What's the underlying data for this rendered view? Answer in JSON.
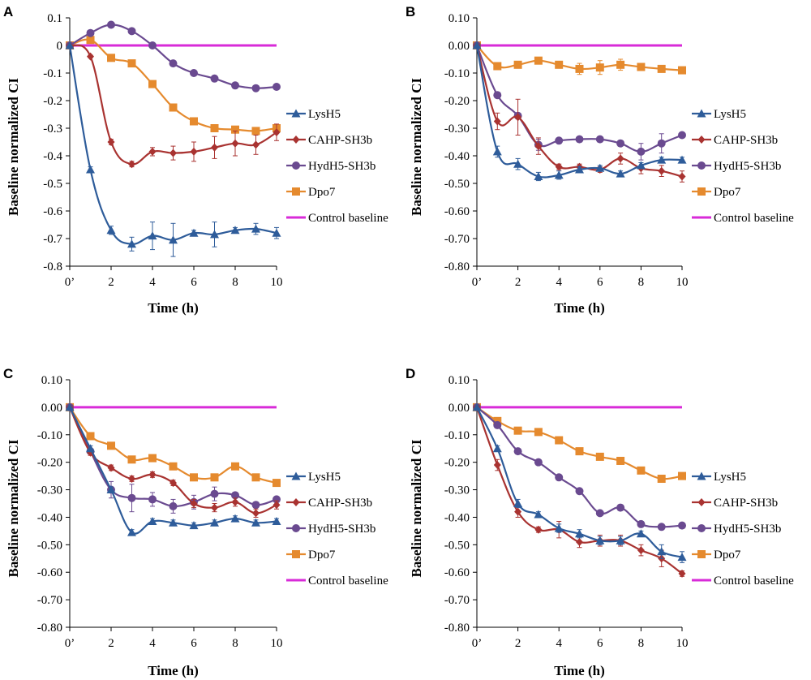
{
  "chart_data": [
    {
      "panel": "A",
      "type": "line",
      "xlabel": "Time (h)",
      "ylabel": "Baseline normalized CI",
      "x_ticks": [
        "0’",
        "2",
        "4",
        "6",
        "8",
        "10"
      ],
      "y_ticks": [
        "0.1",
        "0",
        "-0.1",
        "-0.2",
        "-0.3",
        "-0.4",
        "-0.5",
        "-0.6",
        "-0.7",
        "-0.8"
      ],
      "xlim": [
        0,
        10
      ],
      "ylim": [
        -0.8,
        0.1
      ],
      "x": [
        0,
        1,
        2,
        3,
        4,
        5,
        6,
        7,
        8,
        9,
        10
      ],
      "series": [
        {
          "name": "LysH5",
          "color": "#2E5C9A",
          "marker": "triangle",
          "values": [
            0,
            -0.45,
            -0.67,
            -0.72,
            -0.69,
            -0.705,
            -0.68,
            -0.685,
            -0.67,
            -0.665,
            -0.68
          ],
          "errors": [
            0,
            0.01,
            0.015,
            0.025,
            0.05,
            0.06,
            0.01,
            0.045,
            0.01,
            0.02,
            0.02
          ]
        },
        {
          "name": "CAHP-SH3b",
          "color": "#A93331",
          "marker": "diamond",
          "values": [
            0,
            -0.04,
            -0.35,
            -0.43,
            -0.385,
            -0.39,
            -0.385,
            -0.37,
            -0.355,
            -0.36,
            -0.315
          ],
          "errors": [
            0,
            0.005,
            0.01,
            0.01,
            0.015,
            0.025,
            0.035,
            0.04,
            0.045,
            0.035,
            0.03
          ]
        },
        {
          "name": "HydH5-SH3b",
          "color": "#6A4A90",
          "marker": "circle",
          "values": [
            0,
            0.045,
            0.075,
            0.052,
            0,
            -0.065,
            -0.1,
            -0.12,
            -0.145,
            -0.155,
            -0.15
          ],
          "errors": [
            0,
            0,
            0,
            0,
            0,
            0,
            0,
            0,
            0,
            0,
            0
          ]
        },
        {
          "name": "Dpo7",
          "color": "#E58A2E",
          "marker": "square",
          "values": [
            0,
            0.02,
            -0.045,
            -0.065,
            -0.14,
            -0.225,
            -0.275,
            -0.3,
            -0.305,
            -0.31,
            -0.3
          ],
          "errors": [
            0,
            0,
            0,
            0,
            0,
            0,
            0,
            0,
            0,
            0,
            0
          ]
        },
        {
          "name": "Control baseline",
          "color": "#D82BD8",
          "marker": "none",
          "values": [
            0,
            0,
            0,
            0,
            0,
            0,
            0,
            0,
            0,
            0,
            0
          ],
          "errors": [
            0,
            0,
            0,
            0,
            0,
            0,
            0,
            0,
            0,
            0,
            0
          ]
        }
      ]
    },
    {
      "panel": "B",
      "type": "line",
      "xlabel": "Time (h)",
      "ylabel": "Baseline normalized CI",
      "x_ticks": [
        "0’",
        "2",
        "4",
        "6",
        "8",
        "10"
      ],
      "y_ticks": [
        "0.10",
        "0.00",
        "-0.10",
        "-0.20",
        "-0.30",
        "-0.40",
        "-0.50",
        "-0.60",
        "-0.70",
        "-0.80"
      ],
      "xlim": [
        0,
        10
      ],
      "ylim": [
        -0.8,
        0.1
      ],
      "x": [
        0,
        1,
        2,
        3,
        4,
        5,
        6,
        7,
        8,
        9,
        10
      ],
      "series": [
        {
          "name": "LysH5",
          "color": "#2E5C9A",
          "marker": "triangle",
          "values": [
            0,
            -0.385,
            -0.43,
            -0.475,
            -0.47,
            -0.45,
            -0.445,
            -0.465,
            -0.435,
            -0.415,
            -0.415
          ],
          "errors": [
            0,
            0.02,
            0.02,
            0.015,
            0.015,
            0.01,
            0.01,
            0.01,
            0.01,
            0.01,
            0.01
          ]
        },
        {
          "name": "CAHP-SH3b",
          "color": "#A93331",
          "marker": "diamond",
          "values": [
            0,
            -0.275,
            -0.26,
            -0.365,
            -0.44,
            -0.44,
            -0.45,
            -0.41,
            -0.445,
            -0.455,
            -0.475
          ],
          "errors": [
            0,
            0.03,
            0.065,
            0.03,
            0.01,
            0.01,
            0.01,
            0.02,
            0.02,
            0.02,
            0.02
          ]
        },
        {
          "name": "HydH5-SH3b",
          "color": "#6A4A90",
          "marker": "circle",
          "values": [
            0,
            -0.18,
            -0.255,
            -0.36,
            -0.345,
            -0.34,
            -0.34,
            -0.355,
            -0.385,
            -0.355,
            -0.325
          ],
          "errors": [
            0,
            0,
            0,
            0.02,
            0,
            0,
            0,
            0,
            0.03,
            0.035,
            0
          ]
        },
        {
          "name": "Dpo7",
          "color": "#E58A2E",
          "marker": "square",
          "values": [
            0,
            -0.075,
            -0.07,
            -0.055,
            -0.07,
            -0.085,
            -0.08,
            -0.07,
            -0.078,
            -0.085,
            -0.09
          ],
          "errors": [
            0,
            0,
            0,
            0,
            0,
            0.02,
            0.025,
            0.02,
            0,
            0,
            0
          ]
        },
        {
          "name": "Control baseline",
          "color": "#D82BD8",
          "marker": "none",
          "values": [
            0,
            0,
            0,
            0,
            0,
            0,
            0,
            0,
            0,
            0,
            0
          ],
          "errors": [
            0,
            0,
            0,
            0,
            0,
            0,
            0,
            0,
            0,
            0,
            0
          ]
        }
      ]
    },
    {
      "panel": "C",
      "type": "line",
      "xlabel": "Time (h)",
      "ylabel": "Baseline normalized CI",
      "x_ticks": [
        "0’",
        "2",
        "4",
        "6",
        "8",
        "10"
      ],
      "y_ticks": [
        "0.10",
        "0.00",
        "-0.10",
        "-0.20",
        "-0.30",
        "-0.40",
        "-0.50",
        "-0.60",
        "-0.70",
        "-0.80"
      ],
      "xlim": [
        0,
        10
      ],
      "ylim": [
        -0.8,
        0.1
      ],
      "x": [
        0,
        1,
        2,
        3,
        4,
        5,
        6,
        7,
        8,
        9,
        10
      ],
      "series": [
        {
          "name": "LysH5",
          "color": "#2E5C9A",
          "marker": "triangle",
          "values": [
            0,
            -0.15,
            -0.3,
            -0.455,
            -0.415,
            -0.42,
            -0.43,
            -0.42,
            -0.405,
            -0.42,
            -0.415
          ],
          "errors": [
            0,
            0.01,
            0.01,
            0.01,
            0.01,
            0.01,
            0.01,
            0.01,
            0.01,
            0.01,
            0.01
          ]
        },
        {
          "name": "CAHP-SH3b",
          "color": "#A93331",
          "marker": "diamond",
          "values": [
            0,
            -0.165,
            -0.22,
            -0.26,
            -0.245,
            -0.275,
            -0.35,
            -0.365,
            -0.345,
            -0.385,
            -0.355
          ],
          "errors": [
            0,
            0.01,
            0.01,
            0.01,
            0.01,
            0.01,
            0.015,
            0.015,
            0.015,
            0.015,
            0.015
          ]
        },
        {
          "name": "HydH5-SH3b",
          "color": "#6A4A90",
          "marker": "circle",
          "values": [
            0,
            -0.16,
            -0.3,
            -0.33,
            -0.335,
            -0.36,
            -0.345,
            -0.315,
            -0.32,
            -0.355,
            -0.335
          ],
          "errors": [
            0,
            0.01,
            0.03,
            0.05,
            0.025,
            0.025,
            0.025,
            0.025,
            0.01,
            0.01,
            0.01
          ]
        },
        {
          "name": "Dpo7",
          "color": "#E58A2E",
          "marker": "square",
          "values": [
            0,
            -0.105,
            -0.14,
            -0.19,
            -0.185,
            -0.215,
            -0.255,
            -0.255,
            -0.215,
            -0.255,
            -0.275
          ],
          "errors": [
            0,
            0,
            0,
            0,
            0,
            0,
            0,
            0,
            0,
            0,
            0
          ]
        },
        {
          "name": "Control baseline",
          "color": "#D82BD8",
          "marker": "none",
          "values": [
            0,
            0,
            0,
            0,
            0,
            0,
            0,
            0,
            0,
            0,
            0
          ],
          "errors": [
            0,
            0,
            0,
            0,
            0,
            0,
            0,
            0,
            0,
            0,
            0
          ]
        }
      ]
    },
    {
      "panel": "D",
      "type": "line",
      "xlabel": "Time (h)",
      "ylabel": "Baseline normalized CI",
      "x_ticks": [
        "0’",
        "2",
        "4",
        "6",
        "8",
        "10"
      ],
      "y_ticks": [
        "0.10",
        "0.00",
        "-0.10",
        "-0.20",
        "-0.30",
        "-0.40",
        "-0.50",
        "-0.60",
        "-0.70",
        "-0.80"
      ],
      "xlim": [
        0,
        10
      ],
      "ylim": [
        -0.8,
        0.1
      ],
      "x": [
        0,
        1,
        2,
        3,
        4,
        5,
        6,
        7,
        8,
        9,
        10
      ],
      "series": [
        {
          "name": "LysH5",
          "color": "#2E5C9A",
          "marker": "triangle",
          "values": [
            0,
            -0.15,
            -0.35,
            -0.39,
            -0.44,
            -0.46,
            -0.485,
            -0.485,
            -0.46,
            -0.525,
            -0.545
          ],
          "errors": [
            0,
            0.01,
            0.015,
            0.01,
            0.015,
            0.015,
            0.015,
            0.015,
            0.01,
            0.025,
            0.02
          ]
        },
        {
          "name": "CAHP-SH3b",
          "color": "#A93331",
          "marker": "diamond",
          "values": [
            0,
            -0.21,
            -0.38,
            -0.445,
            -0.445,
            -0.49,
            -0.485,
            -0.485,
            -0.52,
            -0.55,
            -0.605
          ],
          "errors": [
            0,
            0.02,
            0.02,
            0.01,
            0.03,
            0.02,
            0.02,
            0.02,
            0.02,
            0.03,
            0.01
          ]
        },
        {
          "name": "HydH5-SH3b",
          "color": "#6A4A90",
          "marker": "circle",
          "values": [
            0,
            -0.065,
            -0.16,
            -0.2,
            -0.255,
            -0.305,
            -0.385,
            -0.365,
            -0.425,
            -0.435,
            -0.43
          ],
          "errors": [
            0,
            0,
            0,
            0,
            0,
            0,
            0,
            0,
            0,
            0,
            0
          ]
        },
        {
          "name": "Dpo7",
          "color": "#E58A2E",
          "marker": "square",
          "values": [
            0,
            -0.05,
            -0.085,
            -0.09,
            -0.12,
            -0.16,
            -0.18,
            -0.195,
            -0.23,
            -0.26,
            -0.25
          ],
          "errors": [
            0,
            0,
            0,
            0,
            0,
            0,
            0,
            0,
            0,
            0,
            0
          ]
        },
        {
          "name": "Control baseline",
          "color": "#D82BD8",
          "marker": "none",
          "values": [
            0,
            0,
            0,
            0,
            0,
            0,
            0,
            0,
            0,
            0,
            0
          ],
          "errors": [
            0,
            0,
            0,
            0,
            0,
            0,
            0,
            0,
            0,
            0,
            0
          ]
        }
      ]
    }
  ]
}
